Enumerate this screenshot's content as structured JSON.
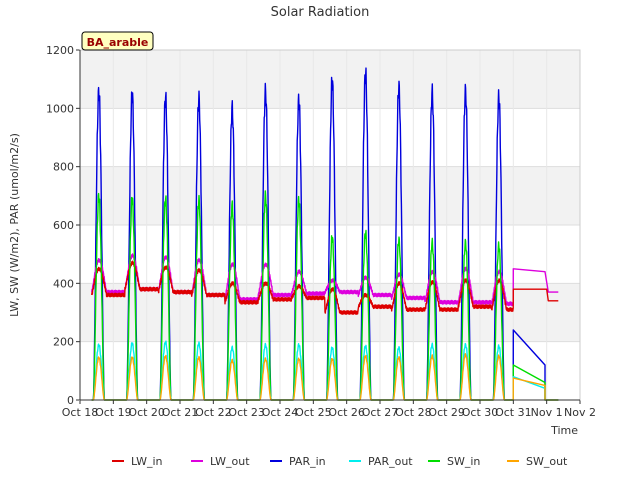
{
  "chart_data": {
    "type": "line",
    "title": "Solar Radiation",
    "xlabel": "Time",
    "ylabel": "LW, SW (W/m2), PAR (umol/m2/s)",
    "annotation": "BA_arable",
    "xlim": [
      18,
      33
    ],
    "ylim": [
      0,
      1200
    ],
    "x_ticks": [
      {
        "v": 18,
        "label": "Oct 18"
      },
      {
        "v": 19,
        "label": "Oct 19"
      },
      {
        "v": 20,
        "label": "Oct 20"
      },
      {
        "v": 21,
        "label": "Oct 21"
      },
      {
        "v": 22,
        "label": "Oct 22"
      },
      {
        "v": 23,
        "label": "Oct 23"
      },
      {
        "v": 24,
        "label": "Oct 24"
      },
      {
        "v": 25,
        "label": "Oct 25"
      },
      {
        "v": 26,
        "label": "Oct 26"
      },
      {
        "v": 27,
        "label": "Oct 27"
      },
      {
        "v": 28,
        "label": "Oct 28"
      },
      {
        "v": 29,
        "label": "Oct 29"
      },
      {
        "v": 30,
        "label": "Oct 30"
      },
      {
        "v": 31,
        "label": "Oct 31"
      },
      {
        "v": 32,
        "label": "Nov 1"
      },
      {
        "v": 33,
        "label": "Nov 2"
      }
    ],
    "y_ticks": [
      0,
      200,
      400,
      600,
      800,
      1000,
      1200
    ],
    "legend_position": "bottom",
    "grid": true,
    "day_start": 18.35,
    "day_peaks": [
      {
        "PAR_in": 1090,
        "PAR_out": 195,
        "SW_in": 720,
        "SW_out": 150,
        "LW_in": 450,
        "LW_out": 480
      },
      {
        "PAR_in": 1080,
        "PAR_out": 200,
        "SW_in": 710,
        "SW_out": 150,
        "LW_in": 470,
        "LW_out": 495
      },
      {
        "PAR_in": 1070,
        "PAR_out": 205,
        "SW_in": 710,
        "SW_out": 155,
        "LW_in": 455,
        "LW_out": 490
      },
      {
        "PAR_in": 1065,
        "PAR_out": 200,
        "SW_in": 705,
        "SW_out": 150,
        "LW_in": 445,
        "LW_out": 480
      },
      {
        "PAR_in": 1030,
        "PAR_out": 185,
        "SW_in": 685,
        "SW_out": 140,
        "LW_in": 400,
        "LW_out": 465
      },
      {
        "PAR_in": 1090,
        "PAR_out": 195,
        "SW_in": 720,
        "SW_out": 145,
        "LW_in": 400,
        "LW_out": 465
      },
      {
        "PAR_in": 1060,
        "PAR_out": 195,
        "SW_in": 705,
        "SW_out": 145,
        "LW_in": 390,
        "LW_out": 440
      },
      {
        "PAR_in": 1130,
        "PAR_out": 185,
        "SW_in": 575,
        "SW_out": 145,
        "LW_in": 380,
        "LW_out": 410
      },
      {
        "PAR_in": 1155,
        "PAR_out": 190,
        "SW_in": 590,
        "SW_out": 155,
        "LW_in": 360,
        "LW_out": 420
      },
      {
        "PAR_in": 1105,
        "PAR_out": 185,
        "SW_in": 565,
        "SW_out": 150,
        "LW_in": 400,
        "LW_out": 430
      },
      {
        "PAR_in": 1085,
        "PAR_out": 195,
        "SW_in": 555,
        "SW_out": 155,
        "LW_in": 405,
        "LW_out": 440
      },
      {
        "PAR_in": 1090,
        "PAR_out": 195,
        "SW_in": 555,
        "SW_out": 160,
        "LW_in": 410,
        "LW_out": 450
      },
      {
        "PAR_in": 1070,
        "PAR_out": 190,
        "SW_in": 545,
        "SW_out": 155,
        "LW_in": 410,
        "LW_out": 440
      }
    ],
    "tail_segments": {
      "LW_in": [
        [
          31.0,
          380
        ],
        [
          32.0,
          380
        ],
        [
          32.05,
          340
        ],
        [
          32.35,
          340
        ]
      ],
      "LW_out": [
        [
          31.0,
          450
        ],
        [
          31.95,
          440
        ],
        [
          32.05,
          370
        ],
        [
          32.35,
          370
        ]
      ],
      "PAR_in": [
        [
          31.0,
          240
        ],
        [
          31.95,
          120
        ],
        [
          31.95,
          0
        ],
        [
          32.35,
          0
        ]
      ],
      "PAR_out": [
        [
          31.0,
          80
        ],
        [
          31.95,
          40
        ],
        [
          31.95,
          0
        ],
        [
          32.35,
          0
        ]
      ],
      "SW_in": [
        [
          31.0,
          120
        ],
        [
          31.95,
          60
        ],
        [
          31.95,
          0
        ],
        [
          32.35,
          0
        ]
      ],
      "SW_out": [
        [
          31.0,
          75
        ],
        [
          31.95,
          50
        ],
        [
          31.95,
          0
        ],
        [
          32.35,
          0
        ]
      ]
    },
    "series": [
      {
        "name": "LW_in",
        "color": "#dd0000"
      },
      {
        "name": "LW_out",
        "color": "#dd00dd"
      },
      {
        "name": "PAR_in",
        "color": "#0000dd"
      },
      {
        "name": "PAR_out",
        "color": "#00eeee"
      },
      {
        "name": "SW_in",
        "color": "#00dd00"
      },
      {
        "name": "SW_out",
        "color": "#ffa500"
      }
    ]
  }
}
